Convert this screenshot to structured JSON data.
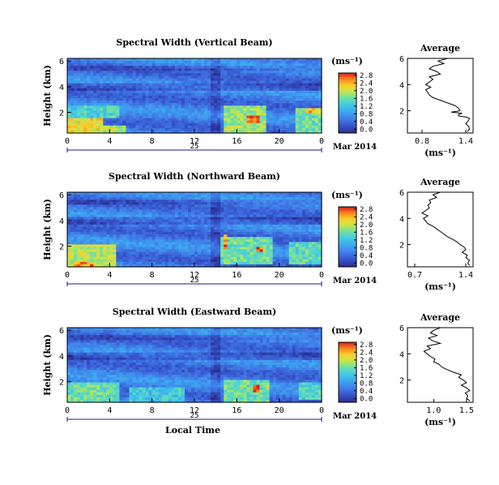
{
  "chart_data": [
    {
      "type": "heatmap",
      "title": "Spectral Width (Vertical Beam)",
      "ylabel": "Height (km)",
      "xlabel": "",
      "xticks": [
        "0",
        "4",
        "8",
        "12",
        "16",
        "20",
        "0"
      ],
      "yticks": [
        "6",
        "4",
        "2"
      ],
      "xlim": [
        0,
        24
      ],
      "ylim": [
        0.4,
        6.2
      ],
      "day_label": "25",
      "date_label": "Mar 2014",
      "unit_label": "(ms⁻¹)",
      "colorbar": {
        "ticks": [
          "2.8",
          "2.4",
          "2.0",
          "1.6",
          "1.2",
          "0.8",
          "0.4",
          "0.0"
        ],
        "range": [
          0,
          2.8
        ]
      },
      "average": {
        "title": "Average",
        "xlabel": "(ms⁻¹)",
        "xticks": [
          "0.8",
          "1.4"
        ],
        "yticks": [
          "6",
          "4",
          "2"
        ],
        "xlim": [
          0.6,
          1.5
        ],
        "ylim": [
          0.3,
          6
        ],
        "profile": [
          [
            1.15,
            6.0
          ],
          [
            1.02,
            5.8
          ],
          [
            1.1,
            5.6
          ],
          [
            0.95,
            5.4
          ],
          [
            0.9,
            5.2
          ],
          [
            1.0,
            5.0
          ],
          [
            1.05,
            4.8
          ],
          [
            0.9,
            4.6
          ],
          [
            0.95,
            4.4
          ],
          [
            0.9,
            4.2
          ],
          [
            0.85,
            4.0
          ],
          [
            0.92,
            3.8
          ],
          [
            0.85,
            3.6
          ],
          [
            0.88,
            3.4
          ],
          [
            0.9,
            3.2
          ],
          [
            0.95,
            3.0
          ],
          [
            1.05,
            2.8
          ],
          [
            1.15,
            2.6
          ],
          [
            1.25,
            2.4
          ],
          [
            1.3,
            2.2
          ],
          [
            1.32,
            2.0
          ],
          [
            1.2,
            1.9
          ],
          [
            1.35,
            1.8
          ],
          [
            1.3,
            1.7
          ],
          [
            1.3,
            1.6
          ],
          [
            1.42,
            1.5
          ],
          [
            1.45,
            1.4
          ],
          [
            1.43,
            1.2
          ],
          [
            1.4,
            1.0
          ],
          [
            1.44,
            0.8
          ],
          [
            1.45,
            0.6
          ],
          [
            1.42,
            0.4
          ]
        ]
      },
      "events": [
        {
          "t0": 0,
          "t1": 3.5,
          "h0": 0.4,
          "h1": 1.5,
          "v": 2.1
        },
        {
          "t0": 3.5,
          "t1": 5.5,
          "h0": 0.4,
          "h1": 1.0,
          "v": 1.9
        },
        {
          "t0": 0,
          "t1": 5,
          "h0": 1.5,
          "h1": 2.6,
          "v": 1.4
        },
        {
          "t0": 14.8,
          "t1": 18.8,
          "h0": 0.4,
          "h1": 2.6,
          "v": 1.8
        },
        {
          "t0": 17,
          "t1": 18,
          "h0": 1.2,
          "h1": 1.7,
          "v": 2.6
        },
        {
          "t0": 21.5,
          "t1": 24,
          "h0": 0.4,
          "h1": 2.4,
          "v": 1.6
        },
        {
          "t0": 22.5,
          "t1": 24,
          "h0": 2.0,
          "h1": 2.3,
          "v": 2.3
        }
      ]
    },
    {
      "type": "heatmap",
      "title": "Spectral Width (Northward Beam)",
      "ylabel": "Height (km)",
      "xlabel": "",
      "xticks": [
        "0",
        "4",
        "8",
        "12",
        "16",
        "20",
        "0"
      ],
      "yticks": [
        "6",
        "4",
        "2"
      ],
      "xlim": [
        0,
        24
      ],
      "ylim": [
        0.4,
        6.2
      ],
      "day_label": "25",
      "date_label": "Mar 2014",
      "unit_label": "(ms⁻¹)",
      "colorbar": {
        "ticks": [
          "2.8",
          "2.4",
          "2.0",
          "1.6",
          "1.2",
          "0.8",
          "0.4",
          "0.0"
        ],
        "range": [
          0,
          2.8
        ]
      },
      "average": {
        "title": "Average",
        "xlabel": "(ms⁻¹)",
        "xticks": [
          "0.7",
          "1.4"
        ],
        "yticks": [
          "6",
          "4",
          "2"
        ],
        "xlim": [
          0.6,
          1.5
        ],
        "ylim": [
          0.3,
          6
        ],
        "profile": [
          [
            1.05,
            6.0
          ],
          [
            0.95,
            5.8
          ],
          [
            1.0,
            5.6
          ],
          [
            0.9,
            5.4
          ],
          [
            0.92,
            5.2
          ],
          [
            0.88,
            5.0
          ],
          [
            0.9,
            4.8
          ],
          [
            0.85,
            4.6
          ],
          [
            0.8,
            4.4
          ],
          [
            0.88,
            4.2
          ],
          [
            0.82,
            4.0
          ],
          [
            0.85,
            3.8
          ],
          [
            0.88,
            3.6
          ],
          [
            0.95,
            3.4
          ],
          [
            1.0,
            3.2
          ],
          [
            1.05,
            3.0
          ],
          [
            1.1,
            2.8
          ],
          [
            1.15,
            2.6
          ],
          [
            1.22,
            2.4
          ],
          [
            1.28,
            2.2
          ],
          [
            1.32,
            2.0
          ],
          [
            1.38,
            1.8
          ],
          [
            1.4,
            1.6
          ],
          [
            1.35,
            1.4
          ],
          [
            1.42,
            1.2
          ],
          [
            1.4,
            1.0
          ],
          [
            1.45,
            0.8
          ],
          [
            1.43,
            0.6
          ],
          [
            1.45,
            0.4
          ]
        ]
      },
      "events": [
        {
          "t0": 0,
          "t1": 4.5,
          "h0": 0.4,
          "h1": 2.2,
          "v": 1.9
        },
        {
          "t0": 0.5,
          "t1": 2.5,
          "h0": 0.4,
          "h1": 0.8,
          "v": 2.5
        },
        {
          "t0": 14.5,
          "t1": 19.5,
          "h0": 0.6,
          "h1": 2.8,
          "v": 1.6
        },
        {
          "t0": 14.8,
          "t1": 15.2,
          "h0": 1.8,
          "h1": 3.0,
          "v": 2.5
        },
        {
          "t0": 18,
          "t1": 18.6,
          "h0": 1.5,
          "h1": 2.0,
          "v": 2.6
        },
        {
          "t0": 21,
          "t1": 24,
          "h0": 0.5,
          "h1": 2.3,
          "v": 1.5
        }
      ]
    },
    {
      "type": "heatmap",
      "title": "Spectral Width (Eastward Beam)",
      "ylabel": "Height (km)",
      "xlabel": "Local Time",
      "xticks": [
        "0",
        "4",
        "8",
        "12",
        "16",
        "20",
        "0"
      ],
      "yticks": [
        "6",
        "4",
        "2"
      ],
      "xlim": [
        0,
        24
      ],
      "ylim": [
        0.4,
        6.2
      ],
      "day_label": "25",
      "date_label": "Mar 2014",
      "unit_label": "(ms⁻¹)",
      "colorbar": {
        "ticks": [
          "2.8",
          "2.4",
          "2.0",
          "1.6",
          "1.2",
          "0.8",
          "0.4",
          "0.0"
        ],
        "range": [
          0,
          2.8
        ]
      },
      "average": {
        "title": "Average",
        "xlabel": "(ms⁻¹)",
        "xticks": [
          "1.0",
          "1.5"
        ],
        "yticks": [
          "6",
          "4",
          "2"
        ],
        "xlim": [
          0.6,
          1.6
        ],
        "ylim": [
          0.3,
          6
        ],
        "profile": [
          [
            1.1,
            6.0
          ],
          [
            1.0,
            5.8
          ],
          [
            0.95,
            5.6
          ],
          [
            1.05,
            5.4
          ],
          [
            0.92,
            5.2
          ],
          [
            0.98,
            5.0
          ],
          [
            1.1,
            4.8
          ],
          [
            0.9,
            4.6
          ],
          [
            0.95,
            4.4
          ],
          [
            0.85,
            4.2
          ],
          [
            0.9,
            4.0
          ],
          [
            0.95,
            3.8
          ],
          [
            1.02,
            3.6
          ],
          [
            1.0,
            3.4
          ],
          [
            1.08,
            3.2
          ],
          [
            1.12,
            3.0
          ],
          [
            1.2,
            2.8
          ],
          [
            1.3,
            2.6
          ],
          [
            1.42,
            2.4
          ],
          [
            1.38,
            2.2
          ],
          [
            1.45,
            2.0
          ],
          [
            1.5,
            1.8
          ],
          [
            1.42,
            1.6
          ],
          [
            1.5,
            1.4
          ],
          [
            1.55,
            1.2
          ],
          [
            1.48,
            1.0
          ],
          [
            1.52,
            0.8
          ],
          [
            1.5,
            0.6
          ],
          [
            1.55,
            0.4
          ]
        ]
      },
      "events": [
        {
          "t0": 0,
          "t1": 5,
          "h0": 0.4,
          "h1": 1.9,
          "v": 1.6
        },
        {
          "t0": 6,
          "t1": 11,
          "h0": 0.4,
          "h1": 1.6,
          "v": 1.3
        },
        {
          "t0": 14.8,
          "t1": 19,
          "h0": 0.4,
          "h1": 2.2,
          "v": 1.6
        },
        {
          "t0": 17.6,
          "t1": 18.2,
          "h0": 1.2,
          "h1": 1.8,
          "v": 2.7
        },
        {
          "t0": 22,
          "t1": 24,
          "h0": 0.6,
          "h1": 2.0,
          "v": 1.4
        }
      ]
    }
  ]
}
